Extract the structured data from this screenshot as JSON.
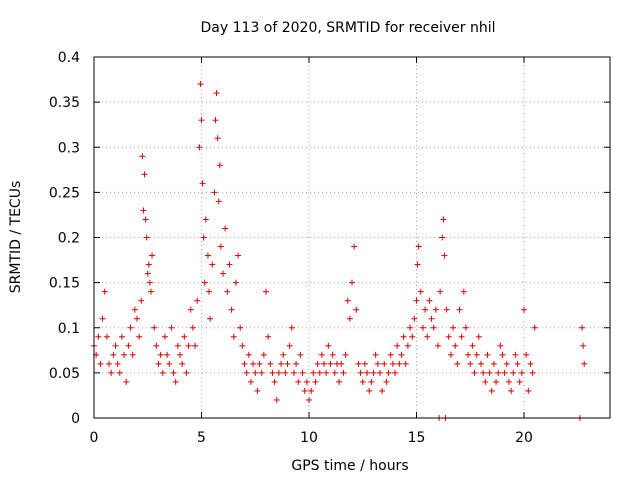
{
  "chart_data": {
    "type": "scatter",
    "title": "Day 113 of 2020, SRMTID for receiver nhil",
    "xlabel": "GPS time / hours",
    "ylabel": "SRMTID / TECUs",
    "xlim": [
      0,
      24
    ],
    "ylim": [
      0,
      0.4
    ],
    "x_ticks": [
      "0",
      "5",
      "10",
      "15",
      "20"
    ],
    "y_ticks": [
      "0",
      "0.05",
      "0.1",
      "0.15",
      "0.2",
      "0.25",
      "0.3",
      "0.35",
      "0.4"
    ],
    "grid": true,
    "marker": "+",
    "color": "#dd0000",
    "series": [
      {
        "points": [
          [
            0.0,
            0.08
          ],
          [
            0.1,
            0.07
          ],
          [
            0.2,
            0.09
          ],
          [
            0.3,
            0.06
          ],
          [
            0.4,
            0.11
          ],
          [
            0.5,
            0.14
          ],
          [
            0.6,
            0.09
          ],
          [
            0.7,
            0.06
          ],
          [
            0.8,
            0.05
          ],
          [
            0.9,
            0.07
          ],
          [
            1.0,
            0.08
          ],
          [
            1.1,
            0.06
          ],
          [
            1.2,
            0.05
          ],
          [
            1.3,
            0.09
          ],
          [
            1.4,
            0.07
          ],
          [
            1.5,
            0.04
          ],
          [
            1.6,
            0.08
          ],
          [
            1.7,
            0.1
          ],
          [
            1.8,
            0.07
          ],
          [
            1.9,
            0.12
          ],
          [
            2.0,
            0.11
          ],
          [
            2.1,
            0.09
          ],
          [
            2.2,
            0.13
          ],
          [
            2.25,
            0.29
          ],
          [
            2.3,
            0.23
          ],
          [
            2.35,
            0.27
          ],
          [
            2.4,
            0.22
          ],
          [
            2.45,
            0.2
          ],
          [
            2.5,
            0.16
          ],
          [
            2.55,
            0.17
          ],
          [
            2.6,
            0.15
          ],
          [
            2.65,
            0.14
          ],
          [
            2.7,
            0.18
          ],
          [
            2.8,
            0.1
          ],
          [
            2.9,
            0.08
          ],
          [
            3.0,
            0.06
          ],
          [
            3.1,
            0.07
          ],
          [
            3.2,
            0.05
          ],
          [
            3.3,
            0.09
          ],
          [
            3.4,
            0.07
          ],
          [
            3.5,
            0.06
          ],
          [
            3.6,
            0.1
          ],
          [
            3.7,
            0.05
          ],
          [
            3.8,
            0.04
          ],
          [
            3.9,
            0.08
          ],
          [
            4.0,
            0.07
          ],
          [
            4.1,
            0.06
          ],
          [
            4.2,
            0.09
          ],
          [
            4.3,
            0.05
          ],
          [
            4.4,
            0.08
          ],
          [
            4.5,
            0.12
          ],
          [
            4.6,
            0.1
          ],
          [
            4.7,
            0.08
          ],
          [
            4.8,
            0.13
          ],
          [
            4.9,
            0.3
          ],
          [
            4.95,
            0.37
          ],
          [
            5.0,
            0.33
          ],
          [
            5.05,
            0.26
          ],
          [
            5.1,
            0.2
          ],
          [
            5.15,
            0.15
          ],
          [
            5.2,
            0.22
          ],
          [
            5.3,
            0.18
          ],
          [
            5.35,
            0.14
          ],
          [
            5.4,
            0.11
          ],
          [
            5.5,
            0.17
          ],
          [
            5.6,
            0.25
          ],
          [
            5.65,
            0.33
          ],
          [
            5.7,
            0.36
          ],
          [
            5.75,
            0.31
          ],
          [
            5.8,
            0.24
          ],
          [
            5.85,
            0.28
          ],
          [
            5.9,
            0.19
          ],
          [
            6.0,
            0.16
          ],
          [
            6.1,
            0.21
          ],
          [
            6.2,
            0.14
          ],
          [
            6.3,
            0.17
          ],
          [
            6.4,
            0.12
          ],
          [
            6.5,
            0.09
          ],
          [
            6.6,
            0.15
          ],
          [
            6.7,
            0.18
          ],
          [
            6.8,
            0.1
          ],
          [
            6.9,
            0.08
          ],
          [
            7.0,
            0.06
          ],
          [
            7.1,
            0.05
          ],
          [
            7.2,
            0.07
          ],
          [
            7.3,
            0.04
          ],
          [
            7.4,
            0.06
          ],
          [
            7.5,
            0.05
          ],
          [
            7.6,
            0.03
          ],
          [
            7.7,
            0.06
          ],
          [
            7.8,
            0.05
          ],
          [
            7.9,
            0.07
          ],
          [
            8.0,
            0.14
          ],
          [
            8.1,
            0.09
          ],
          [
            8.2,
            0.06
          ],
          [
            8.3,
            0.05
          ],
          [
            8.4,
            0.04
          ],
          [
            8.5,
            0.02
          ],
          [
            8.6,
            0.05
          ],
          [
            8.7,
            0.06
          ],
          [
            8.8,
            0.07
          ],
          [
            8.9,
            0.05
          ],
          [
            9.0,
            0.06
          ],
          [
            9.1,
            0.08
          ],
          [
            9.2,
            0.1
          ],
          [
            9.3,
            0.05
          ],
          [
            9.4,
            0.06
          ],
          [
            9.5,
            0.04
          ],
          [
            9.6,
            0.07
          ],
          [
            9.7,
            0.05
          ],
          [
            9.8,
            0.03
          ],
          [
            9.9,
            0.04
          ],
          [
            10.0,
            0.02
          ],
          [
            10.1,
            0.03
          ],
          [
            10.2,
            0.05
          ],
          [
            10.3,
            0.04
          ],
          [
            10.4,
            0.06
          ],
          [
            10.5,
            0.05
          ],
          [
            10.6,
            0.07
          ],
          [
            10.7,
            0.06
          ],
          [
            10.8,
            0.05
          ],
          [
            10.9,
            0.08
          ],
          [
            11.0,
            0.06
          ],
          [
            11.1,
            0.07
          ],
          [
            11.2,
            0.05
          ],
          [
            11.3,
            0.06
          ],
          [
            11.4,
            0.04
          ],
          [
            11.5,
            0.06
          ],
          [
            11.6,
            0.05
          ],
          [
            11.7,
            0.07
          ],
          [
            11.8,
            0.13
          ],
          [
            11.9,
            0.11
          ],
          [
            12.0,
            0.15
          ],
          [
            12.1,
            0.19
          ],
          [
            12.2,
            0.12
          ],
          [
            12.3,
            0.06
          ],
          [
            12.4,
            0.05
          ],
          [
            12.5,
            0.04
          ],
          [
            12.6,
            0.06
          ],
          [
            12.7,
            0.05
          ],
          [
            12.8,
            0.03
          ],
          [
            12.9,
            0.04
          ],
          [
            13.0,
            0.05
          ],
          [
            13.1,
            0.07
          ],
          [
            13.2,
            0.06
          ],
          [
            13.3,
            0.05
          ],
          [
            13.4,
            0.03
          ],
          [
            13.5,
            0.06
          ],
          [
            13.6,
            0.04
          ],
          [
            13.7,
            0.05
          ],
          [
            13.8,
            0.07
          ],
          [
            13.9,
            0.06
          ],
          [
            14.0,
            0.05
          ],
          [
            14.1,
            0.08
          ],
          [
            14.2,
            0.06
          ],
          [
            14.3,
            0.07
          ],
          [
            14.4,
            0.09
          ],
          [
            14.5,
            0.06
          ],
          [
            14.6,
            0.08
          ],
          [
            14.7,
            0.1
          ],
          [
            14.8,
            0.09
          ],
          [
            14.9,
            0.11
          ],
          [
            15.0,
            0.13
          ],
          [
            15.05,
            0.17
          ],
          [
            15.1,
            0.19
          ],
          [
            15.2,
            0.14
          ],
          [
            15.3,
            0.1
          ],
          [
            15.4,
            0.12
          ],
          [
            15.5,
            0.09
          ],
          [
            15.6,
            0.13
          ],
          [
            15.7,
            0.11
          ],
          [
            15.8,
            0.1
          ],
          [
            15.9,
            0.12
          ],
          [
            16.0,
            0.08
          ],
          [
            16.05,
            0.0
          ],
          [
            16.1,
            0.14
          ],
          [
            16.2,
            0.2
          ],
          [
            16.25,
            0.22
          ],
          [
            16.3,
            0.18
          ],
          [
            16.35,
            0.0
          ],
          [
            16.4,
            0.12
          ],
          [
            16.5,
            0.09
          ],
          [
            16.6,
            0.07
          ],
          [
            16.7,
            0.1
          ],
          [
            16.8,
            0.08
          ],
          [
            16.9,
            0.06
          ],
          [
            17.0,
            0.12
          ],
          [
            17.1,
            0.09
          ],
          [
            17.2,
            0.14
          ],
          [
            17.3,
            0.1
          ],
          [
            17.4,
            0.07
          ],
          [
            17.5,
            0.06
          ],
          [
            17.6,
            0.08
          ],
          [
            17.7,
            0.05
          ],
          [
            17.8,
            0.07
          ],
          [
            17.9,
            0.09
          ],
          [
            18.0,
            0.06
          ],
          [
            18.1,
            0.05
          ],
          [
            18.2,
            0.04
          ],
          [
            18.3,
            0.07
          ],
          [
            18.4,
            0.05
          ],
          [
            18.5,
            0.03
          ],
          [
            18.6,
            0.06
          ],
          [
            18.7,
            0.04
          ],
          [
            18.8,
            0.05
          ],
          [
            18.9,
            0.08
          ],
          [
            19.0,
            0.07
          ],
          [
            19.1,
            0.05
          ],
          [
            19.2,
            0.06
          ],
          [
            19.3,
            0.04
          ],
          [
            19.4,
            0.03
          ],
          [
            19.5,
            0.05
          ],
          [
            19.6,
            0.07
          ],
          [
            19.7,
            0.06
          ],
          [
            19.8,
            0.04
          ],
          [
            19.9,
            0.05
          ],
          [
            20.0,
            0.12
          ],
          [
            20.1,
            0.07
          ],
          [
            20.2,
            0.03
          ],
          [
            20.3,
            0.06
          ],
          [
            20.4,
            0.05
          ],
          [
            20.5,
            0.1
          ],
          [
            22.6,
            0.0
          ],
          [
            22.7,
            0.1
          ],
          [
            22.75,
            0.08
          ],
          [
            22.8,
            0.06
          ]
        ]
      }
    ]
  }
}
